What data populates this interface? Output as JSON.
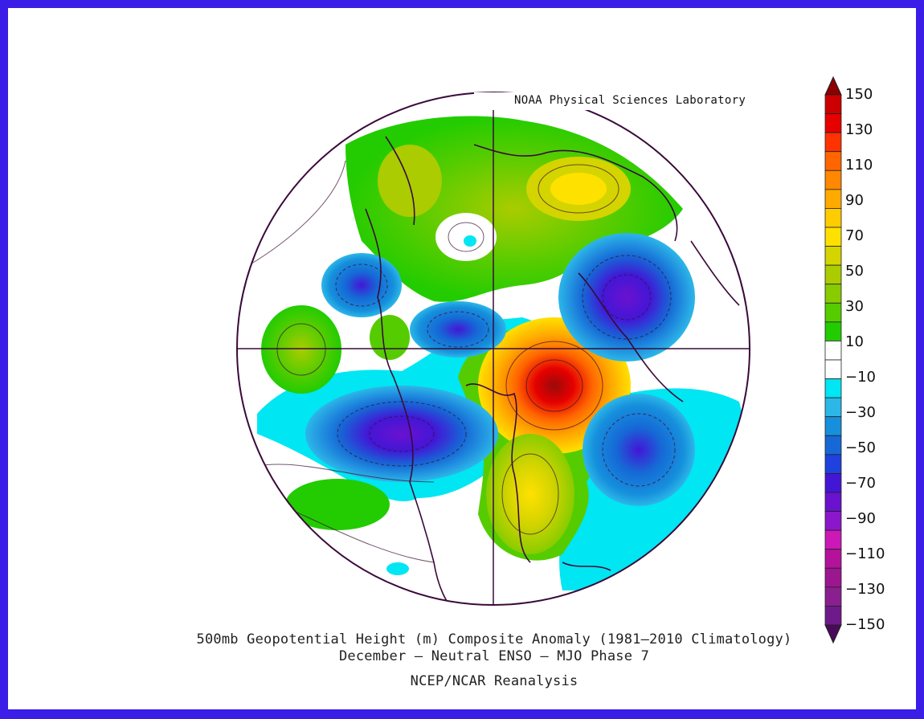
{
  "credit": "NOAA Physical Sciences Laboratory",
  "title_line1": "500mb Geopotential Height (m) Composite Anomaly (1981–2010 Climatology)",
  "title_line2": "December – Neutral ENSO – MJO Phase 7",
  "source": "NCEP/NCAR Reanalysis",
  "colorbar": {
    "labels": [
      "150",
      "130",
      "110",
      "90",
      "70",
      "50",
      "30",
      "10",
      "−10",
      "−30",
      "−50",
      "−70",
      "−90",
      "−110",
      "−130",
      "−150"
    ],
    "colors": [
      "#6e1a8a",
      "#8b1f8f",
      "#9c168f",
      "#b4129a",
      "#cc18b7",
      "#8a17c9",
      "#6a12cf",
      "#4316d6",
      "#1f41dd",
      "#1668d6",
      "#1690dc",
      "#2cb7e8",
      "#00e6f2",
      "#ffffff",
      "#ffffff",
      "#22cc00",
      "#55cc00",
      "#88cc00",
      "#aacc00",
      "#d4d400",
      "#ffe100",
      "#ffcc00",
      "#ffaa00",
      "#ff8800",
      "#ff6600",
      "#ff3300",
      "#e60000",
      "#cc0000"
    ]
  }
}
